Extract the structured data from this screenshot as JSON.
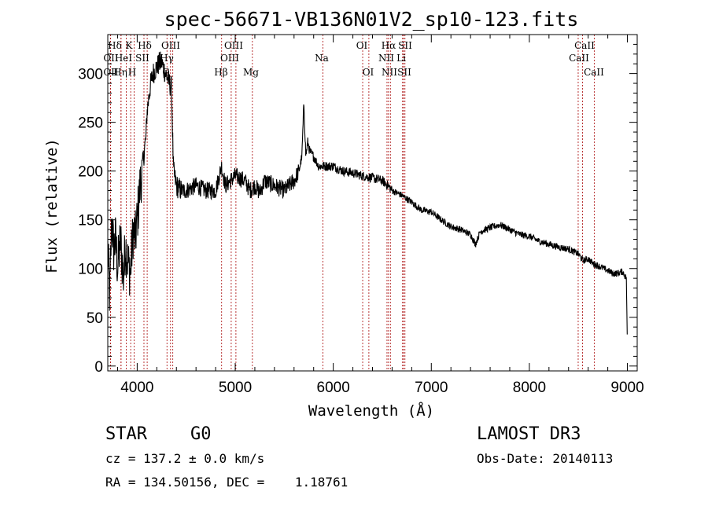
{
  "chart_data": {
    "type": "line",
    "title": "spec-56671-VB136N01V2_sp10-123.fits",
    "xlabel": "Wavelength (Å)",
    "ylabel": "Flux (relative)",
    "xlim": [
      3700,
      9100
    ],
    "ylim": [
      -5,
      340
    ],
    "x_ticks": [
      4000,
      5000,
      6000,
      7000,
      8000,
      9000
    ],
    "x_tick_labels": [
      "4000",
      "5000",
      "6000",
      "7000",
      "8000",
      "9000"
    ],
    "y_ticks": [
      0,
      50,
      100,
      150,
      200,
      250,
      300
    ],
    "y_tick_labels": [
      "0",
      "50",
      "100",
      "150",
      "200",
      "250",
      "300"
    ],
    "grid": false,
    "spectrum_anchors": {
      "x": [
        3700,
        3720,
        3740,
        3760,
        3780,
        3800,
        3830,
        3860,
        3880,
        3900,
        3930,
        3960,
        3980,
        4000,
        4030,
        4060,
        4090,
        4100,
        4130,
        4160,
        4190,
        4220,
        4250,
        4270,
        4290,
        4310,
        4330,
        4350,
        4370,
        4400,
        4450,
        4500,
        4600,
        4700,
        4800,
        4860,
        4900,
        5000,
        5100,
        5150,
        5200,
        5250,
        5300,
        5400,
        5500,
        5600,
        5650,
        5680,
        5700,
        5720,
        5740,
        5760,
        5800,
        5850,
        5900,
        6000,
        6100,
        6200,
        6300,
        6400,
        6500,
        6560,
        6600,
        6700,
        6800,
        6900,
        7000,
        7100,
        7200,
        7300,
        7400,
        7450,
        7500,
        7600,
        7700,
        7800,
        7900,
        8000,
        8100,
        8200,
        8300,
        8400,
        8500,
        8550,
        8600,
        8650,
        8700,
        8800,
        8850,
        8900,
        8950,
        8990,
        9000
      ],
      "y": [
        120,
        70,
        150,
        120,
        130,
        100,
        130,
        90,
        125,
        110,
        95,
        140,
        130,
        150,
        185,
        210,
        235,
        260,
        285,
        300,
        305,
        310,
        312,
        305,
        300,
        295,
        290,
        285,
        200,
        185,
        180,
        180,
        185,
        180,
        180,
        205,
        185,
        195,
        190,
        180,
        185,
        178,
        190,
        185,
        180,
        190,
        200,
        215,
        270,
        215,
        230,
        220,
        215,
        205,
        205,
        205,
        200,
        198,
        195,
        193,
        190,
        185,
        180,
        175,
        168,
        160,
        158,
        150,
        143,
        140,
        135,
        125,
        138,
        142,
        145,
        140,
        135,
        133,
        128,
        125,
        122,
        120,
        115,
        108,
        110,
        105,
        103,
        98,
        95,
        95,
        97,
        90,
        15
      ]
    },
    "series_name": "spectrum",
    "lines": [
      {
        "name": "Hδ",
        "x": 3835
      },
      {
        "name": "OII",
        "x": 3727
      },
      {
        "name": "OII",
        "x": 3729
      },
      {
        "name": "HeI",
        "x": 3889
      },
      {
        "name": "Hη",
        "x": 3835
      },
      {
        "name": "K",
        "x": 3934
      },
      {
        "name": "H",
        "x": 3969
      },
      {
        "name": "SII",
        "x": 4069
      },
      {
        "name": "Hδ",
        "x": 4102
      },
      {
        "name": "Hγ",
        "x": 4340
      },
      {
        "name": "OIII",
        "x": 4363
      },
      {
        "name": "G",
        "x": 4304
      },
      {
        "name": "Hβ",
        "x": 4861
      },
      {
        "name": "OIII",
        "x": 4959
      },
      {
        "name": "OIII",
        "x": 5007
      },
      {
        "name": "Mg",
        "x": 5175
      },
      {
        "name": "Na",
        "x": 5894
      },
      {
        "name": "OI",
        "x": 6300
      },
      {
        "name": "OI",
        "x": 6363
      },
      {
        "name": "NII",
        "x": 6548
      },
      {
        "name": "Hα",
        "x": 6563
      },
      {
        "name": "NII",
        "x": 6583
      },
      {
        "name": "Li",
        "x": 6707
      },
      {
        "name": "SII",
        "x": 6716
      },
      {
        "name": "SII",
        "x": 6731
      },
      {
        "name": "CaII",
        "x": 8498
      },
      {
        "name": "CaII",
        "x": 8542
      },
      {
        "name": "CaII",
        "x": 8662
      }
    ]
  },
  "labels": {
    "row1": [
      "Hδ",
      "K",
      "Hδ",
      "OIII",
      "OIII",
      "OI",
      "Hα",
      "SII",
      "CaII"
    ],
    "row2": [
      "OII",
      "HeI",
      "SII",
      "Hγ",
      "OIII",
      "Na",
      "NII",
      "Li",
      "CaII"
    ],
    "row3": [
      "OII",
      "Hη",
      "H",
      "G",
      "Hβ",
      "Mg",
      "OI",
      "NII",
      "SII",
      "CaII"
    ]
  },
  "info": {
    "object_type": "STAR",
    "subclass": "G0",
    "survey": "LAMOST DR3",
    "cz_line": "cz = 137.2 ± 0.0 km/s",
    "obs_date_line": "Obs-Date: 20140113",
    "coords_line": "RA = 134.50156, DEC =    1.18761"
  }
}
